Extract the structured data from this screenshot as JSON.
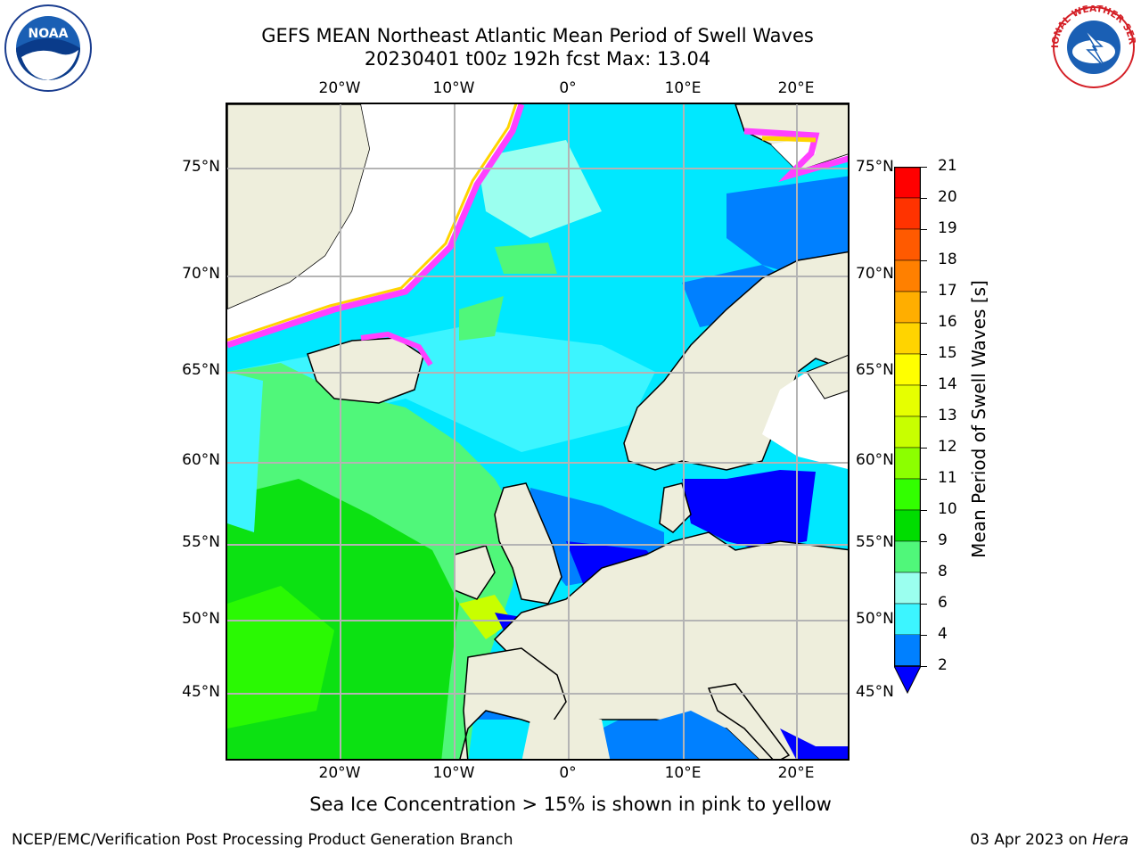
{
  "title_line1": "GEFS MEAN Northeast Atlantic Mean Period of Swell Waves",
  "title_line2": "20230401 t00z 192h fcst   Max: 13.04",
  "lon_labels_top": [
    "20°W",
    "10°W",
    "0°",
    "10°E",
    "20°E"
  ],
  "lon_labels_bottom": [
    "20°W",
    "10°W",
    "0°",
    "10°E",
    "20°E"
  ],
  "lat_labels_left": [
    "75°N",
    "70°N",
    "65°N",
    "60°N",
    "55°N",
    "50°N",
    "45°N"
  ],
  "lat_labels_right": [
    "75°N",
    "70°N",
    "65°N",
    "60°N",
    "55°N",
    "50°N",
    "45°N"
  ],
  "colorbar": {
    "title": "Mean Period of Swell Waves [s]",
    "ticks": [
      "21",
      "20",
      "19",
      "18",
      "17",
      "16",
      "15",
      "14",
      "13",
      "12",
      "11",
      "10",
      "9",
      "8",
      "6",
      "4",
      "2"
    ],
    "colors": [
      "#ff0000",
      "#ff3300",
      "#ff5a00",
      "#ff8000",
      "#ffae00",
      "#ffd400",
      "#ffff00",
      "#e6ff00",
      "#c8ff00",
      "#8cff00",
      "#32ff00",
      "#00dd00",
      "#50f77a",
      "#9bffef",
      "#3cf5ff",
      "#00e8ff",
      "#0080ff"
    ],
    "under_color": "#0000ff"
  },
  "ice_note": "Sea Ice Concentration > 15% is shown in pink to yellow",
  "credit": "NCEP/EMC/Verification Post Processing Product Generation Branch",
  "date_text": "03 Apr 2023 on ",
  "date_host": "Hera",
  "noaa_logo_text": "NOAA",
  "nws_logo_text": "NATIONAL WEATHER SERVICE",
  "colors": {
    "land": "#eeeedc",
    "grid": "#b4b4b4",
    "ice_pink": "#ff40ff",
    "ice_yellow": "#ffd400"
  }
}
